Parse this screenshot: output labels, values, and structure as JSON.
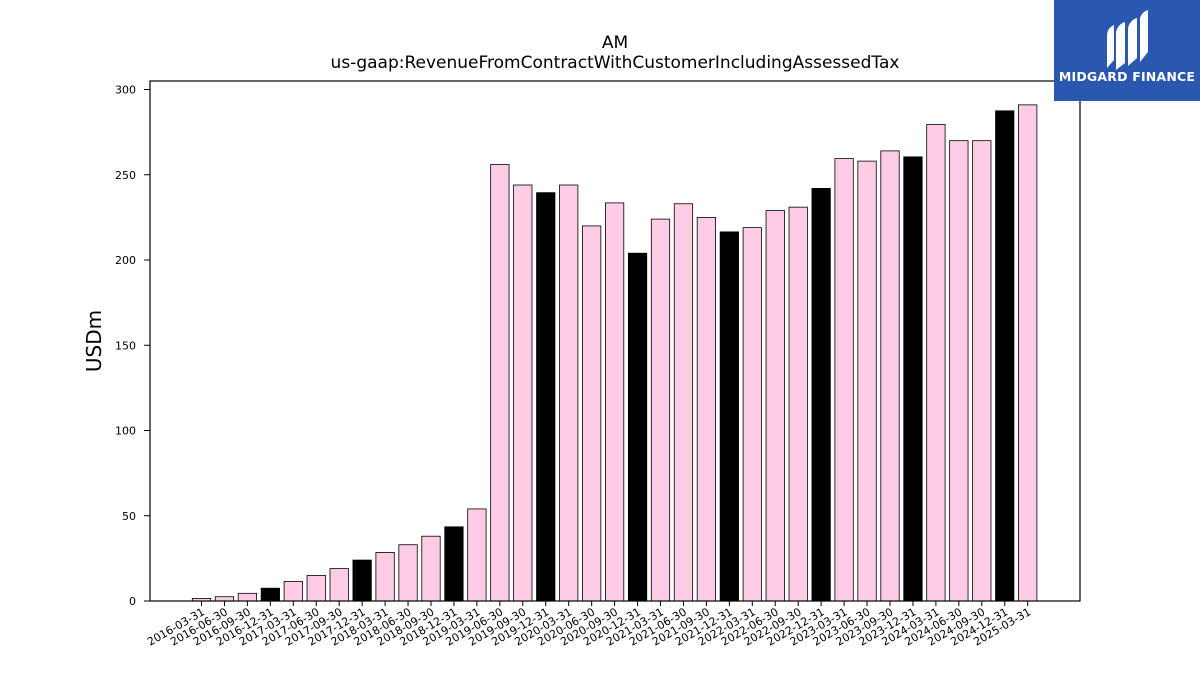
{
  "chart_data": {
    "type": "bar",
    "title": "AM",
    "subtitle": "us-gaap:RevenueFromContractWithCustomerIncludingAssessedTax",
    "xlabel": "",
    "ylabel": "USDm",
    "ylim": [
      0,
      305
    ],
    "yticks": [
      0,
      50,
      100,
      150,
      200,
      250,
      300
    ],
    "grid": false,
    "categories": [
      "2016-03-31",
      "2016-06-30",
      "2016-09-30",
      "2016-12-31",
      "2017-03-31",
      "2017-06-30",
      "2017-09-30",
      "2017-12-31",
      "2018-03-31",
      "2018-06-30",
      "2018-09-30",
      "2018-12-31",
      "2019-03-31",
      "2019-06-30",
      "2019-09-30",
      "2019-12-31",
      "2020-03-31",
      "2020-06-30",
      "2020-09-30",
      "2020-12-31",
      "2021-03-31",
      "2021-06-30",
      "2021-09-30",
      "2021-12-31",
      "2022-03-31",
      "2022-06-30",
      "2022-09-30",
      "2022-12-31",
      "2023-03-31",
      "2023-06-30",
      "2023-09-30",
      "2023-12-31",
      "2024-03-31",
      "2024-06-30",
      "2024-09-30",
      "2024-12-31",
      "2025-03-31"
    ],
    "values": [
      1.5,
      2.5,
      4.5,
      7.5,
      11.5,
      15,
      19,
      24,
      28.5,
      33,
      38,
      43.5,
      54,
      256,
      244,
      239.5,
      244,
      220,
      233.5,
      204,
      224,
      233,
      225,
      216.5,
      219,
      229,
      231,
      242,
      259.5,
      258,
      264,
      260.5,
      279.5,
      270,
      270,
      287.5,
      291
    ],
    "highlight_color": "#000000",
    "bar_color": "#ffcce6",
    "highlighted_categories": [
      "2016-12-31",
      "2017-12-31",
      "2018-12-31",
      "2019-12-31",
      "2020-12-31",
      "2021-12-31",
      "2022-12-31",
      "2023-12-31",
      "2024-12-31"
    ]
  },
  "logo": {
    "text": "MIDGARD FINANCE",
    "background": "#2a58b0"
  }
}
